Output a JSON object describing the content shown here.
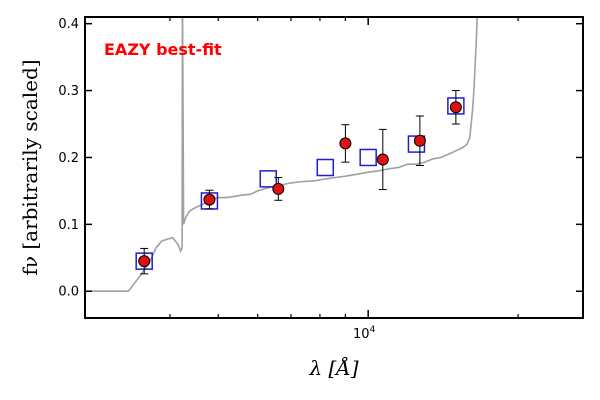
{
  "chart_data": {
    "type": "scatter",
    "title": "",
    "xlabel": "λ [Å]",
    "ylabel": "fν [arbitrarily scaled]",
    "xscale": "log",
    "xlim": [
      2700,
      27000
    ],
    "ylim": [
      -0.04,
      0.41
    ],
    "yticks": [
      0.0,
      0.1,
      0.2,
      0.3,
      0.4
    ],
    "ytick_labels": [
      "0.0",
      "0.1",
      "0.2",
      "0.3",
      "0.4"
    ],
    "xtick_major": [
      10000
    ],
    "xtick_major_labels": [
      "10^4"
    ],
    "xtick_minor": [
      4000,
      5000,
      6000,
      7000,
      8000,
      9000,
      20000
    ],
    "grid": false,
    "annotation": {
      "text": "EAZY best-fit",
      "color": "#ff0000"
    },
    "colors": {
      "template": "#a0a0a0",
      "model_box": "#1f1fd0",
      "observed_fill": "#e01010",
      "observed_edge": "#000000",
      "errorbar": "#000000"
    },
    "template_spectrum": {
      "name": "",
      "x": [
        2700,
        3300,
        3500,
        3650,
        3750,
        3850,
        3950,
        4050,
        4150,
        4200,
        4230,
        4235,
        4240,
        4260,
        4300,
        4380,
        4500,
        4650,
        4800,
        5000,
        5200,
        5400,
        5600,
        5800,
        6000,
        6300,
        6600,
        7000,
        7400,
        7800,
        8200,
        8600,
        9000,
        9500,
        10000,
        10500,
        11000,
        11500,
        12000,
        12500,
        13000,
        13500,
        14000,
        14500,
        15000,
        15500,
        15800,
        16000,
        16200,
        16300,
        16400,
        16500,
        16550,
        16600,
        17000,
        17500,
        18000,
        18500,
        19000,
        19500,
        19700,
        20000,
        21000
      ],
      "y": [
        0.0,
        0.0,
        0.025,
        0.045,
        0.065,
        0.075,
        0.078,
        0.08,
        0.07,
        0.06,
        0.065,
        0.41,
        0.41,
        0.1,
        0.11,
        0.12,
        0.125,
        0.13,
        0.135,
        0.14,
        0.14,
        0.142,
        0.144,
        0.145,
        0.15,
        0.155,
        0.158,
        0.162,
        0.164,
        0.165,
        0.168,
        0.17,
        0.172,
        0.175,
        0.178,
        0.18,
        0.183,
        0.185,
        0.19,
        0.19,
        0.193,
        0.198,
        0.2,
        0.205,
        0.21,
        0.215,
        0.22,
        0.23,
        0.27,
        0.3,
        0.34,
        0.38,
        0.41,
        0.41,
        0.41,
        0.41,
        0.41,
        0.41,
        0.41,
        0.41,
        0.41,
        0.41,
        0.41
      ]
    },
    "model_photometry": {
      "name": "",
      "x": [
        3550,
        4800,
        6300,
        8200,
        10000,
        12500,
        15000
      ],
      "y": [
        0.045,
        0.135,
        0.168,
        0.185,
        0.2,
        0.22,
        0.277
      ]
    },
    "observed_photometry": {
      "name": "",
      "x": [
        3550,
        4800,
        6600,
        9000,
        10700,
        12700,
        15000
      ],
      "y": [
        0.045,
        0.137,
        0.153,
        0.221,
        0.197,
        0.225,
        0.275
      ],
      "yerr": [
        0.019,
        0.014,
        0.017,
        0.028,
        0.045,
        0.037,
        0.025
      ]
    }
  }
}
